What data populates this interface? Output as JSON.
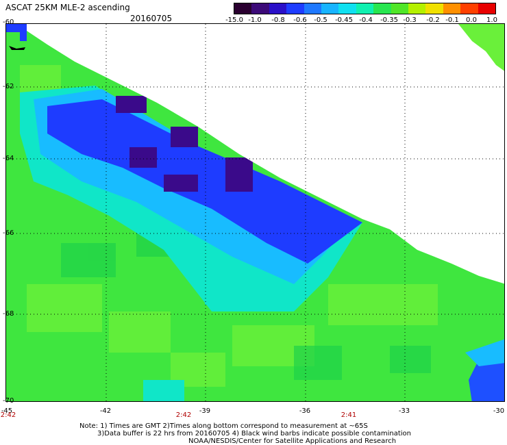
{
  "title": "ASCAT 25KM MLE-2 ascending",
  "date": "20160705",
  "colorbar": {
    "labels": [
      "-15.0",
      "-1.0",
      "-0.8",
      "-0.6",
      "-0.5",
      "-0.45",
      "-0.4",
      "-0.35",
      "-0.3",
      "-0.2",
      "-0.1",
      "0.0",
      "1.0"
    ],
    "colors": [
      "#2a0030",
      "#3c0a78",
      "#2a10c8",
      "#1e3cff",
      "#1e78ff",
      "#18b4ff",
      "#10e0f0",
      "#10f0b0",
      "#28e650",
      "#50e628",
      "#b4f000",
      "#f0e000",
      "#ff9000",
      "#ff4000",
      "#e80000"
    ]
  },
  "map": {
    "lat_labels": [
      "-60",
      "-62",
      "-64",
      "-66",
      "-68",
      "-70"
    ],
    "lon_labels": [
      "-45",
      "-42",
      "-39",
      "-36",
      "-33",
      "-30"
    ],
    "time_labels": [
      "2:42",
      "2:42",
      "2:41"
    ],
    "land_color": "#ffffff",
    "field_color": "#3fe63f"
  },
  "note": {
    "line1": "Note: 1) Times are GMT 2)Times along bottom correspond to measurement at ~65S",
    "line2": "3)Data buffer is 22 hrs from 20160705 4) Black wind barbs indicate possible contamination",
    "line3": "NOAA/NESDIS/Center for Satellite Applications and Research"
  }
}
